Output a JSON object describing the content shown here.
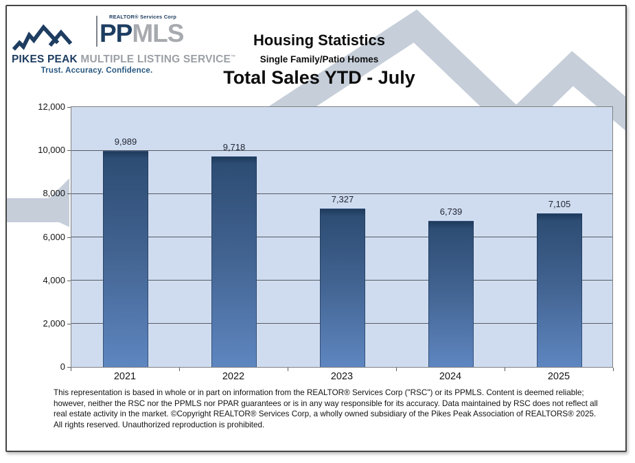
{
  "logo": {
    "realtor_corp": "REALTOR® Services Corp",
    "pp": "PP",
    "mls": "MLS",
    "name_bold": "PIKES PEAK",
    "name_gray": "MULTIPLE LISTING SERVICE",
    "trademark": "™",
    "tagline": "Trust. Accuracy. Confidence.",
    "navy_color": "#1e3d61",
    "gray_color": "#9ba0a6",
    "tagline_color": "#26567f"
  },
  "header": {
    "title": "Housing Statistics",
    "subtitle": "Single Family/Patio Homes",
    "chart_title": "Total Sales YTD - July"
  },
  "chart_data": {
    "type": "bar",
    "title": "Total Sales YTD - July",
    "categories": [
      "2021",
      "2022",
      "2023",
      "2024",
      "2025"
    ],
    "values": [
      9989,
      9718,
      7327,
      6739,
      7105
    ],
    "value_labels": [
      "9,989",
      "9,718",
      "7,327",
      "6,739",
      "7,105"
    ],
    "xlabel": "",
    "ylabel": "",
    "ylim": [
      0,
      12000
    ],
    "ytick_step": 2000,
    "ytick_labels": [
      "0",
      "2,000",
      "4,000",
      "6,000",
      "8,000",
      "10,000",
      "12,000"
    ],
    "grid": true,
    "legend": false,
    "plot_bg_color": "#cfdcf0",
    "bar_top_color": "#1e3a5b",
    "bar_bottom_color": "#5e86c0",
    "gridline_color": "#555a60",
    "background_accent_color": "#c5ced9"
  },
  "footer": {
    "disclaimer": "This representation is based in whole or in part on information from the REALTOR® Services Corp (\"RSC\") or its PPMLS. Content is deemed reliable; however, neither the RSC nor the PPMLS nor PPAR guarantees or is in any way responsible for its accuracy. Data maintained by RSC does not reflect all real estate activity in the market. ©Copyright REALTOR® Services Corp, a wholly owned subsidiary of the Pikes Peak Association of REALTORS® 2025. All rights reserved. Unauthorized reproduction is prohibited."
  }
}
